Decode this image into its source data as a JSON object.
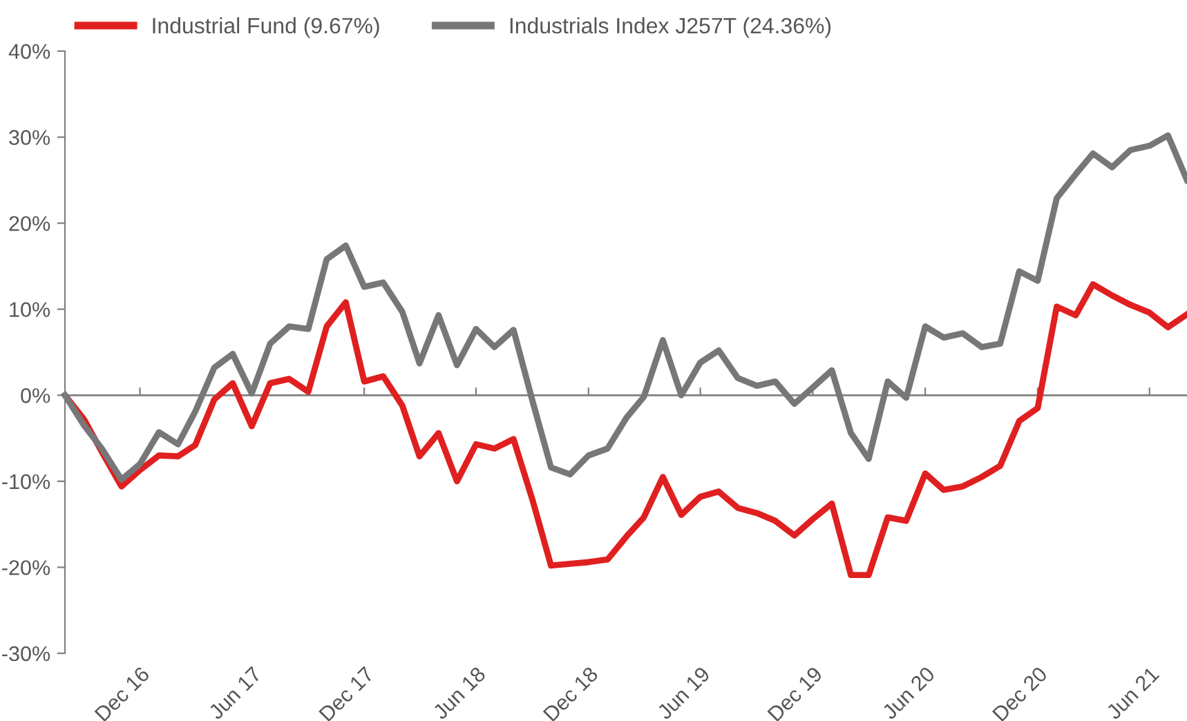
{
  "chart_data": {
    "type": "line",
    "x": [
      "2016-08",
      "2016-09",
      "2016-10",
      "2016-11",
      "2016-12",
      "2017-01",
      "2017-02",
      "2017-03",
      "2017-04",
      "2017-05",
      "2017-06",
      "2017-07",
      "2017-08",
      "2017-09",
      "2017-10",
      "2017-11",
      "2017-12",
      "2018-01",
      "2018-02",
      "2018-03",
      "2018-04",
      "2018-05",
      "2018-06",
      "2018-07",
      "2018-08",
      "2018-09",
      "2018-10",
      "2018-11",
      "2018-12",
      "2019-01",
      "2019-02",
      "2019-03",
      "2019-04",
      "2019-05",
      "2019-06",
      "2019-07",
      "2019-08",
      "2019-09",
      "2019-10",
      "2019-11",
      "2019-12",
      "2020-01",
      "2020-02",
      "2020-03",
      "2020-04",
      "2020-05",
      "2020-06",
      "2020-07",
      "2020-08",
      "2020-09",
      "2020-10",
      "2020-11",
      "2020-12",
      "2021-01",
      "2021-02",
      "2021-03",
      "2021-04",
      "2021-05",
      "2021-06",
      "2021-07",
      "2021-08"
    ],
    "series": [
      {
        "name": "Industrial Fund (9.67%)",
        "color": "#e02020",
        "values": [
          0,
          -2.8,
          -6.7,
          -10.6,
          -8.7,
          -7.0,
          -7.1,
          -5.8,
          -0.5,
          1.4,
          -3.6,
          1.4,
          1.9,
          0.4,
          8.0,
          10.8,
          1.6,
          2.2,
          -1.2,
          -7.1,
          -4.4,
          -10.0,
          -5.7,
          -6.2,
          -5.1,
          -12.2,
          -19.8,
          -19.6,
          -19.4,
          -19.1,
          -16.4,
          -14.2,
          -9.5,
          -13.9,
          -11.8,
          -11.2,
          -13.1,
          -13.7,
          -14.6,
          -16.3,
          -14.4,
          -12.6,
          -20.9,
          -20.9,
          -14.2,
          -14.6,
          -9.1,
          -11.0,
          -10.6,
          -9.5,
          -8.2,
          -3.0,
          -1.5,
          10.3,
          9.3,
          12.9,
          11.6,
          10.5,
          9.6,
          7.9,
          9.4
        ]
      },
      {
        "name": "Industrials Index J257T (24.36%)",
        "color": "#77777a",
        "values": [
          0,
          -3.5,
          -6.3,
          -9.8,
          -8.0,
          -4.3,
          -5.7,
          -1.9,
          3.2,
          4.8,
          0.2,
          6.0,
          8.0,
          7.7,
          15.8,
          17.4,
          12.6,
          13.1,
          9.7,
          3.7,
          9.3,
          3.5,
          7.7,
          5.6,
          7.6,
          -0.7,
          -8.4,
          -9.2,
          -7.0,
          -6.2,
          -2.6,
          -0.2,
          6.4,
          0,
          3.8,
          5.2,
          2.0,
          1.1,
          1.6,
          -1.0,
          0.9,
          2.9,
          -4.4,
          -7.4,
          1.6,
          -0.3,
          8.0,
          6.7,
          7.2,
          5.6,
          6.0,
          14.4,
          13.3,
          22.9,
          25.7,
          28.1,
          26.5,
          28.5,
          29.0,
          30.2,
          25.0
        ]
      }
    ],
    "xlim": [
      "2016-08",
      "2021-08"
    ],
    "xticks": [
      {
        "value": "2016-12",
        "label": "Dec 16"
      },
      {
        "value": "2017-06",
        "label": "Jun 17"
      },
      {
        "value": "2017-12",
        "label": "Dec 17"
      },
      {
        "value": "2018-06",
        "label": "Jun 18"
      },
      {
        "value": "2018-12",
        "label": "Dec 18"
      },
      {
        "value": "2019-06",
        "label": "Jun 19"
      },
      {
        "value": "2019-12",
        "label": "Dec 19"
      },
      {
        "value": "2020-06",
        "label": "Jun 20"
      },
      {
        "value": "2020-12",
        "label": "Dec 20"
      },
      {
        "value": "2021-06",
        "label": "Jun 21"
      }
    ],
    "ylim": [
      -30,
      40
    ],
    "yticks": [
      {
        "value": -30,
        "label": "-30%"
      },
      {
        "value": -20,
        "label": "-20%"
      },
      {
        "value": -10,
        "label": "-10%"
      },
      {
        "value": 0,
        "label": "0%"
      },
      {
        "value": 10,
        "label": "10%"
      },
      {
        "value": 20,
        "label": "20%"
      },
      {
        "value": 30,
        "label": "30%"
      },
      {
        "value": 40,
        "label": "40%"
      }
    ],
    "ref_lines": [
      {
        "axis": "y",
        "value": 0,
        "color": "#808080"
      }
    ],
    "grid": false,
    "legend": "top left",
    "marker": "none",
    "line_style": "solid"
  }
}
